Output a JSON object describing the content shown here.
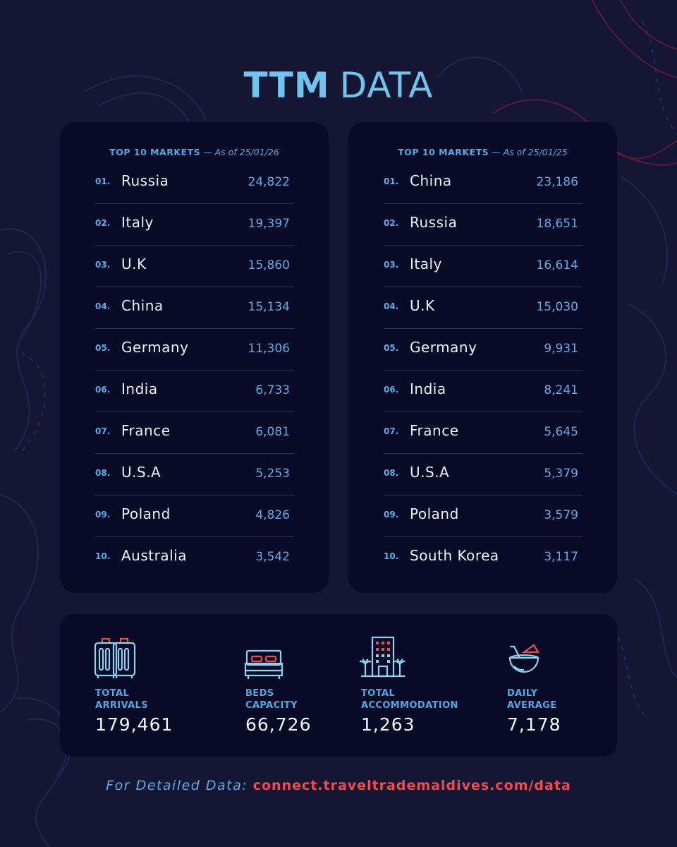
{
  "header": {
    "title_bold": "TTM",
    "title_light": "DATA"
  },
  "left_panel": {
    "heading": "TOP 10 MARKETS",
    "as_of": "— As of 25/01/26",
    "rows": [
      {
        "num": "01.",
        "country": "Russia",
        "value": "24,822"
      },
      {
        "num": "02.",
        "country": "Italy",
        "value": "19,397"
      },
      {
        "num": "03.",
        "country": "U.K",
        "value": "15,860"
      },
      {
        "num": "04.",
        "country": "China",
        "value": "15,134"
      },
      {
        "num": "05.",
        "country": "Germany",
        "value": "11,306"
      },
      {
        "num": "06.",
        "country": "India",
        "value": "6,733"
      },
      {
        "num": "07.",
        "country": "France",
        "value": "6,081"
      },
      {
        "num": "08.",
        "country": "U.S.A",
        "value": "5,253"
      },
      {
        "num": "09.",
        "country": "Poland",
        "value": "4,826"
      },
      {
        "num": "10.",
        "country": "Australia",
        "value": "3,542"
      }
    ]
  },
  "right_panel": {
    "heading": "TOP 10 MARKETS",
    "as_of": "— As of 25/01/25",
    "rows": [
      {
        "num": "01.",
        "country": "China",
        "value": "23,186"
      },
      {
        "num": "02.",
        "country": "Russia",
        "value": "18,651"
      },
      {
        "num": "03.",
        "country": "Italy",
        "value": "16,614"
      },
      {
        "num": "04.",
        "country": "U.K",
        "value": "15,030"
      },
      {
        "num": "05.",
        "country": "Germany",
        "value": "9,931"
      },
      {
        "num": "06.",
        "country": "India",
        "value": "8,241"
      },
      {
        "num": "07.",
        "country": "France",
        "value": "5,645"
      },
      {
        "num": "08.",
        "country": "U.S.A",
        "value": "5,379"
      },
      {
        "num": "09.",
        "country": "Poland",
        "value": "3,579"
      },
      {
        "num": "10.",
        "country": "South Korea",
        "value": "3,117"
      }
    ]
  },
  "stats": [
    {
      "icon": "luggage-icon",
      "label_1": "TOTAL",
      "label_2": "ARRIVALS",
      "value": "179,461"
    },
    {
      "icon": "bed-icon",
      "label_1": "BEDS",
      "label_2": "CAPACITY",
      "value": "66,726"
    },
    {
      "icon": "hotel-building-icon",
      "label_1": "TOTAL",
      "label_2": "ACCOMMODATION",
      "value": "1,263"
    },
    {
      "icon": "coconut-drink-icon",
      "label_1": "DAILY",
      "label_2": "AVERAGE",
      "value": "7,178"
    }
  ],
  "footer": {
    "label": "For Detailed Data:",
    "link": "connect.traveltrademaldives.com/data"
  },
  "colors": {
    "background": "#141634",
    "panel": "#090a26",
    "accent_blue": "#5aaee8",
    "accent_red": "#ef4a52"
  }
}
